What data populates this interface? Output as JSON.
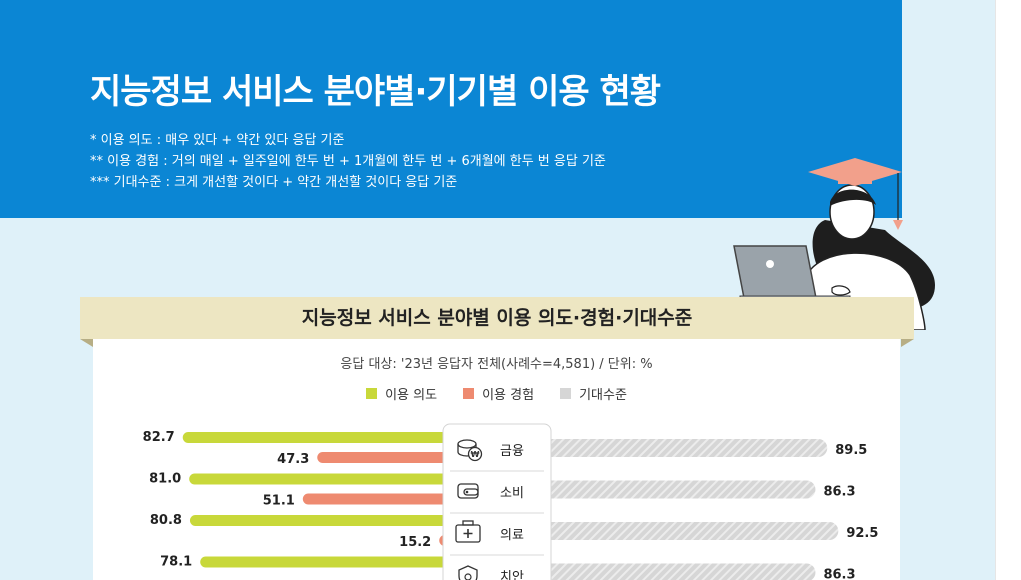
{
  "header": {
    "title": "지능정보 서비스 분야별·기기별 이용 현황",
    "notes": [
      "* 이용 의도 : 매우 있다 + 약간 있다 응답 기준",
      "** 이용 경험 : 거의 매일 + 일주일에 한두 번 + 1개월에 한두 번 + 6개월에 한두 번 응답 기준",
      "*** 기대수준 : 크게 개선할 것이다 + 약간 개선할 것이다 응답 기준"
    ]
  },
  "colors": {
    "header_bg": "#0b86d4",
    "intent": "#c8d83a",
    "experience": "#ee8a70",
    "expectation": "#d6d6d6"
  },
  "chart_data": {
    "type": "bar",
    "title": "지능정보 서비스 분야별 이용 의도·경험·기대수준",
    "subtitle": "응답 대상: '23년 응답자 전체(사례수=4,581) / 단위: %",
    "legend": [
      "이용 의도",
      "이용 경험",
      "기대수준"
    ],
    "legend_position": "top-center",
    "categories": [
      {
        "label": "금융",
        "icon": "coin-won-icon"
      },
      {
        "label": "소비",
        "icon": "wallet-icon"
      },
      {
        "label": "의료",
        "icon": "medical-kit-icon"
      },
      {
        "label": "치안",
        "icon": "police-badge-icon"
      }
    ],
    "series": [
      {
        "name": "이용 의도",
        "values": [
          82.7,
          81.0,
          80.8,
          78.1
        ]
      },
      {
        "name": "이용 경험",
        "values": [
          47.3,
          51.1,
          15.2,
          null
        ]
      },
      {
        "name": "기대수준",
        "values": [
          89.5,
          86.3,
          92.5,
          86.3
        ]
      }
    ],
    "ylim": [
      0,
      100
    ]
  }
}
